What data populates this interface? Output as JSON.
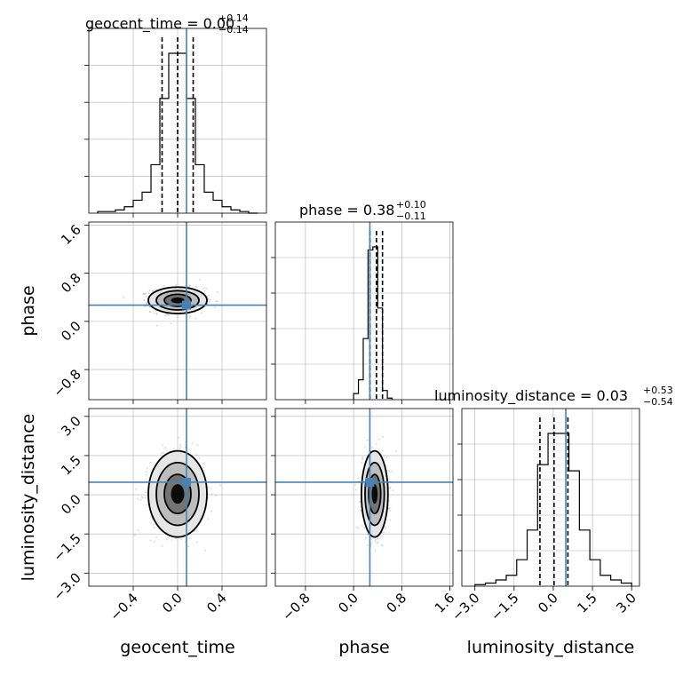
{
  "chart_data": {
    "type": "corner",
    "parameters": [
      "geocent_time",
      "phase",
      "luminosity_distance"
    ],
    "axis_labels": [
      "geocent_time",
      "phase",
      "luminosity_distance"
    ],
    "injection": {
      "geocent_time": 0.08,
      "phase": 0.27,
      "luminosity_distance": 0.48
    },
    "colors": {
      "injection": "#4682b4",
      "hist": "#000000",
      "grid": "#b0b0b0",
      "scatter": "#808080"
    },
    "ranges": {
      "geocent_time": [
        -0.8,
        0.8
      ],
      "phase": [
        -1.3,
        1.65
      ],
      "luminosity_distance": [
        -3.5,
        3.3
      ]
    },
    "ticks": {
      "geocent_time": [
        -0.4,
        0.0,
        0.4
      ],
      "phase": [
        -0.8,
        0.0,
        0.8,
        1.6
      ],
      "luminosity_distance": [
        -3.0,
        -1.5,
        0.0,
        1.5,
        3.0
      ]
    },
    "tick_labels": {
      "geocent_time": [
        "−0.4",
        "0.0",
        "0.4"
      ],
      "phase": [
        "−0.8",
        "0.0",
        "0.8",
        "1.6"
      ],
      "luminosity_distance": [
        "−3.0",
        "−1.5",
        "0.0",
        "1.5",
        "3.0"
      ]
    },
    "titles": [
      {
        "prefix": "geocent_time = 0.00",
        "plus": "+0.14",
        "minus": "−0.14"
      },
      {
        "prefix": "phase = 0.38",
        "plus": "+0.10",
        "minus": "−0.11"
      },
      {
        "prefix": "luminosity_distance = 0.03",
        "plus": "+0.53",
        "minus": "−0.54"
      }
    ],
    "quantiles": {
      "geocent_time": [
        -0.14,
        0.0,
        0.14
      ],
      "phase": [
        0.27,
        0.38,
        0.48
      ],
      "luminosity_distance": [
        -0.51,
        0.03,
        0.56
      ]
    },
    "histograms": {
      "geocent_time": {
        "edges": [
          -0.72,
          -0.64,
          -0.56,
          -0.48,
          -0.4,
          -0.32,
          -0.24,
          -0.16,
          -0.08,
          0.0,
          0.08,
          0.16,
          0.24,
          0.32,
          0.4,
          0.48,
          0.56,
          0.64,
          0.72
        ],
        "counts": [
          1,
          1,
          2,
          4,
          8,
          13,
          30,
          71,
          99,
          99,
          71,
          30,
          13,
          8,
          4,
          2,
          1,
          0
        ]
      },
      "phase": {
        "edges": [
          0.0,
          0.08,
          0.16,
          0.24,
          0.32,
          0.4,
          0.48,
          0.56,
          0.64
        ],
        "counts": [
          4,
          13,
          40,
          98,
          100,
          60,
          6,
          1
        ]
      },
      "luminosity_distance": {
        "edges": [
          -3.0,
          -2.6,
          -2.2,
          -1.8,
          -1.4,
          -1.0,
          -0.6,
          -0.2,
          0.2,
          0.6,
          1.0,
          1.4,
          1.8,
          2.2,
          2.6,
          3.0
        ],
        "counts": [
          1,
          2,
          4,
          7,
          17,
          36,
          78,
          98,
          98,
          74,
          36,
          17,
          7,
          4,
          2
        ]
      }
    },
    "scatter_spread": {
      "geocent_time": {
        "mean": 0.0,
        "sd": 0.12
      },
      "phase": {
        "mean": 0.35,
        "sd": 0.1
      },
      "luminosity_distance": {
        "mean": 0.03,
        "sd": 0.75
      }
    }
  }
}
